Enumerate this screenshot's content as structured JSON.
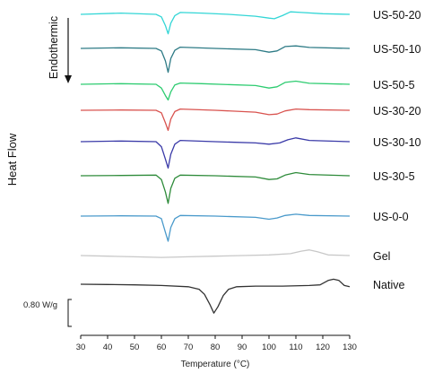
{
  "chart_data": {
    "type": "line",
    "xlabel": "Temperature (°C)",
    "ylabel": "Heat Flow",
    "annotation": "Endothermic",
    "scale_bar_label": "0.80 W/g",
    "xlim": [
      30,
      130
    ],
    "xticks": [
      30,
      40,
      50,
      60,
      70,
      80,
      90,
      100,
      110,
      120,
      130
    ],
    "grid": false,
    "series": [
      {
        "name": "US-50-20",
        "color": "#33d6d6",
        "points": [
          [
            30,
            0
          ],
          [
            45,
            0.1
          ],
          [
            58,
            0
          ],
          [
            60,
            -0.2
          ],
          [
            61.5,
            -0.9
          ],
          [
            62.5,
            -1.55
          ],
          [
            63.5,
            -0.7
          ],
          [
            65,
            -0.1
          ],
          [
            67,
            0.15
          ],
          [
            75,
            0.1
          ],
          [
            85,
            0
          ],
          [
            95,
            -0.15
          ],
          [
            100,
            -0.3
          ],
          [
            102,
            -0.35
          ],
          [
            105,
            -0.1
          ],
          [
            108,
            0.2
          ],
          [
            112,
            0.15
          ],
          [
            120,
            0.05
          ],
          [
            130,
            0
          ]
        ]
      },
      {
        "name": "US-50-10",
        "color": "#2e7b86",
        "points": [
          [
            30,
            0
          ],
          [
            45,
            0.05
          ],
          [
            58,
            0
          ],
          [
            60,
            -0.2
          ],
          [
            61.5,
            -1.0
          ],
          [
            62.5,
            -1.9
          ],
          [
            63.5,
            -0.8
          ],
          [
            65,
            -0.15
          ],
          [
            67,
            0.1
          ],
          [
            80,
            0
          ],
          [
            95,
            -0.1
          ],
          [
            100,
            -0.3
          ],
          [
            103,
            -0.2
          ],
          [
            106,
            0.15
          ],
          [
            110,
            0.2
          ],
          [
            115,
            0.08
          ],
          [
            130,
            0
          ]
        ]
      },
      {
        "name": "US-50-5",
        "color": "#2ecc71",
        "points": [
          [
            30,
            0
          ],
          [
            45,
            0.05
          ],
          [
            58,
            0
          ],
          [
            60,
            -0.3
          ],
          [
            61.5,
            -0.9
          ],
          [
            62.5,
            -1.25
          ],
          [
            63.5,
            -0.6
          ],
          [
            65,
            -0.05
          ],
          [
            67,
            0.1
          ],
          [
            75,
            0.05
          ],
          [
            95,
            -0.1
          ],
          [
            100,
            -0.3
          ],
          [
            103,
            -0.2
          ],
          [
            106,
            0.15
          ],
          [
            110,
            0.25
          ],
          [
            115,
            0.08
          ],
          [
            130,
            0
          ]
        ]
      },
      {
        "name": "US-30-20",
        "color": "#d9534f",
        "points": [
          [
            30,
            0
          ],
          [
            45,
            0.02
          ],
          [
            58,
            0
          ],
          [
            60,
            -0.2
          ],
          [
            61.5,
            -1.0
          ],
          [
            62.5,
            -1.6
          ],
          [
            63.5,
            -0.7
          ],
          [
            65,
            -0.1
          ],
          [
            67,
            0.1
          ],
          [
            80,
            0
          ],
          [
            95,
            -0.15
          ],
          [
            100,
            -0.35
          ],
          [
            103,
            -0.3
          ],
          [
            106,
            -0.05
          ],
          [
            110,
            0.1
          ],
          [
            115,
            0.05
          ],
          [
            130,
            0
          ]
        ]
      },
      {
        "name": "US-30-10",
        "color": "#3a3aa8",
        "points": [
          [
            30,
            0
          ],
          [
            45,
            0.05
          ],
          [
            58,
            0
          ],
          [
            60,
            -0.4
          ],
          [
            61.5,
            -1.4
          ],
          [
            62.5,
            -2.1
          ],
          [
            63.5,
            -1.0
          ],
          [
            65,
            -0.2
          ],
          [
            67,
            0.1
          ],
          [
            80,
            0
          ],
          [
            95,
            -0.1
          ],
          [
            100,
            -0.2
          ],
          [
            104,
            -0.1
          ],
          [
            107,
            0.15
          ],
          [
            110,
            0.3
          ],
          [
            115,
            0.1
          ],
          [
            130,
            0
          ]
        ]
      },
      {
        "name": "US-30-5",
        "color": "#2e8b3a",
        "points": [
          [
            30,
            0
          ],
          [
            45,
            0.02
          ],
          [
            58,
            0.05
          ],
          [
            60,
            -0.3
          ],
          [
            61.5,
            -1.3
          ],
          [
            62.5,
            -2.2
          ],
          [
            63.5,
            -1.0
          ],
          [
            65,
            -0.2
          ],
          [
            67,
            0.05
          ],
          [
            80,
            0
          ],
          [
            95,
            -0.1
          ],
          [
            100,
            -0.3
          ],
          [
            103,
            -0.25
          ],
          [
            106,
            0.05
          ],
          [
            110,
            0.25
          ],
          [
            115,
            0.1
          ],
          [
            130,
            0
          ]
        ]
      },
      {
        "name": "US-0-0",
        "color": "#4a9acb",
        "points": [
          [
            30,
            0
          ],
          [
            45,
            0.02
          ],
          [
            58,
            0
          ],
          [
            60,
            -0.2
          ],
          [
            61.5,
            -1.3
          ],
          [
            62.5,
            -2.0
          ],
          [
            63.5,
            -0.9
          ],
          [
            65,
            -0.2
          ],
          [
            67,
            0.05
          ],
          [
            80,
            0
          ],
          [
            95,
            -0.1
          ],
          [
            100,
            -0.25
          ],
          [
            103,
            -0.15
          ],
          [
            106,
            0.05
          ],
          [
            110,
            0.15
          ],
          [
            115,
            0.05
          ],
          [
            130,
            0
          ]
        ]
      },
      {
        "name": "Gel",
        "color": "#c8c8c8",
        "points": [
          [
            30,
            0
          ],
          [
            40,
            -0.05
          ],
          [
            50,
            -0.1
          ],
          [
            60,
            -0.15
          ],
          [
            70,
            -0.1
          ],
          [
            80,
            -0.05
          ],
          [
            90,
            0
          ],
          [
            100,
            0.05
          ],
          [
            108,
            0.15
          ],
          [
            112,
            0.35
          ],
          [
            115,
            0.45
          ],
          [
            118,
            0.3
          ],
          [
            122,
            0.05
          ],
          [
            130,
            0
          ]
        ]
      },
      {
        "name": "Native",
        "color": "#333333",
        "points": [
          [
            30,
            0
          ],
          [
            40,
            -0.02
          ],
          [
            50,
            -0.05
          ],
          [
            60,
            -0.1
          ],
          [
            70,
            -0.2
          ],
          [
            74,
            -0.4
          ],
          [
            76,
            -0.8
          ],
          [
            78,
            -1.6
          ],
          [
            79.5,
            -2.3
          ],
          [
            81,
            -1.8
          ],
          [
            83,
            -0.9
          ],
          [
            85,
            -0.4
          ],
          [
            88,
            -0.2
          ],
          [
            95,
            -0.15
          ],
          [
            105,
            -0.15
          ],
          [
            115,
            -0.1
          ],
          [
            119,
            -0.05
          ],
          [
            122,
            0.3
          ],
          [
            124,
            0.4
          ],
          [
            126,
            0.3
          ],
          [
            128,
            -0.1
          ],
          [
            130,
            -0.2
          ]
        ]
      }
    ]
  }
}
